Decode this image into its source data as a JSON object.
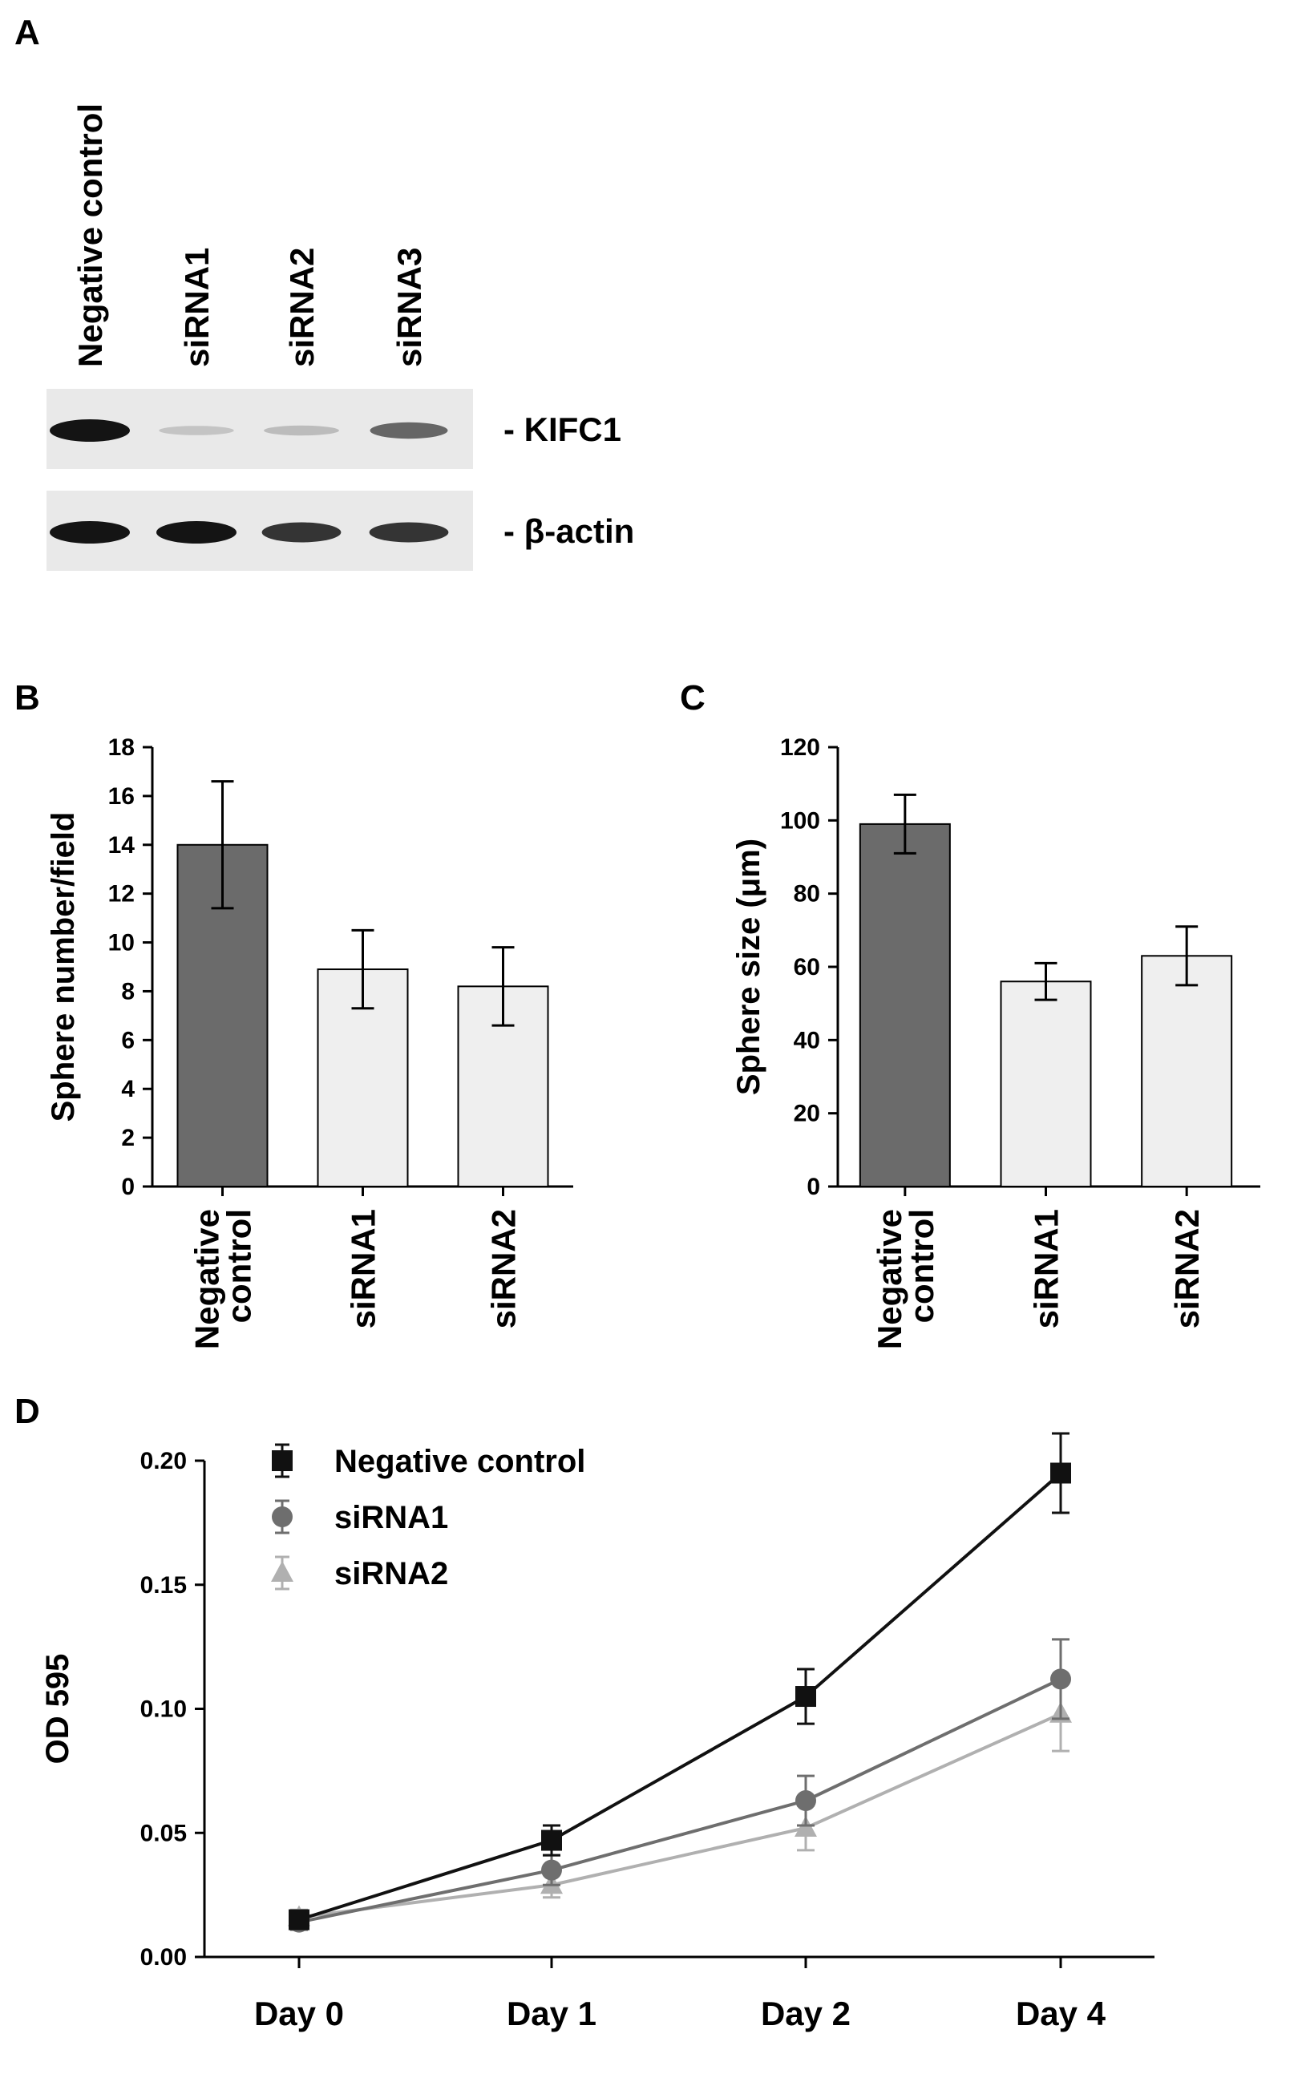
{
  "panel_labels": {
    "a": "A",
    "b": "B",
    "c": "C",
    "d": "D"
  },
  "blot": {
    "lanes": [
      "Negative control",
      "siRNA1",
      "siRNA2",
      "siRNA3"
    ],
    "rows": [
      {
        "label": "- KIFC1",
        "intensities": [
          1.0,
          0.18,
          0.22,
          0.62
        ]
      },
      {
        "label": "- β-actin",
        "intensities": [
          1.0,
          1.0,
          0.85,
          0.85
        ]
      }
    ]
  },
  "chart_data": [
    {
      "type": "bar",
      "panel": "B",
      "ylabel": "Sphere number/field",
      "categories": [
        [
          "Negative",
          "control"
        ],
        [
          "siRNA1"
        ],
        [
          "siRNA2"
        ]
      ],
      "values": [
        14.0,
        8.9,
        8.2
      ],
      "errors": [
        2.6,
        1.6,
        1.6
      ],
      "ylim": [
        0,
        18
      ],
      "yticks": [
        "0",
        "2",
        "4",
        "6",
        "8",
        "10",
        "12",
        "14",
        "16",
        "18"
      ],
      "colors": [
        "#6b6b6b",
        "#efefef",
        "#efefef"
      ]
    },
    {
      "type": "bar",
      "panel": "C",
      "ylabel": "Sphere size (μm)",
      "categories": [
        [
          "Negative",
          "control"
        ],
        [
          "siRNA1"
        ],
        [
          "siRNA2"
        ]
      ],
      "values": [
        99,
        56,
        63
      ],
      "errors": [
        8,
        5,
        8
      ],
      "ylim": [
        0,
        120
      ],
      "yticks": [
        "0",
        "20",
        "40",
        "60",
        "80",
        "100",
        "120"
      ],
      "colors": [
        "#6b6b6b",
        "#efefef",
        "#efefef"
      ]
    },
    {
      "type": "line",
      "panel": "D",
      "ylabel": "OD 595",
      "categories": [
        "Day 0",
        "Day 1",
        "Day 2",
        "Day 4"
      ],
      "ylim": [
        0,
        0.2
      ],
      "yticks": [
        "0.00",
        "0.05",
        "0.10",
        "0.15",
        "0.20"
      ],
      "legend": "top-left",
      "series": [
        {
          "name": "Negative control",
          "marker": "square",
          "color": "#111111",
          "values": [
            0.015,
            0.047,
            0.105,
            0.195
          ],
          "errors": [
            0.003,
            0.006,
            0.011,
            0.016
          ]
        },
        {
          "name": "siRNA1",
          "marker": "circle",
          "color": "#6e6e6e",
          "values": [
            0.014,
            0.035,
            0.063,
            0.112
          ],
          "errors": [
            0.003,
            0.006,
            0.01,
            0.016
          ]
        },
        {
          "name": "siRNA2",
          "marker": "triangle",
          "color": "#b0b0b0",
          "values": [
            0.016,
            0.029,
            0.052,
            0.098
          ],
          "errors": [
            0.003,
            0.005,
            0.009,
            0.015
          ]
        }
      ]
    }
  ]
}
